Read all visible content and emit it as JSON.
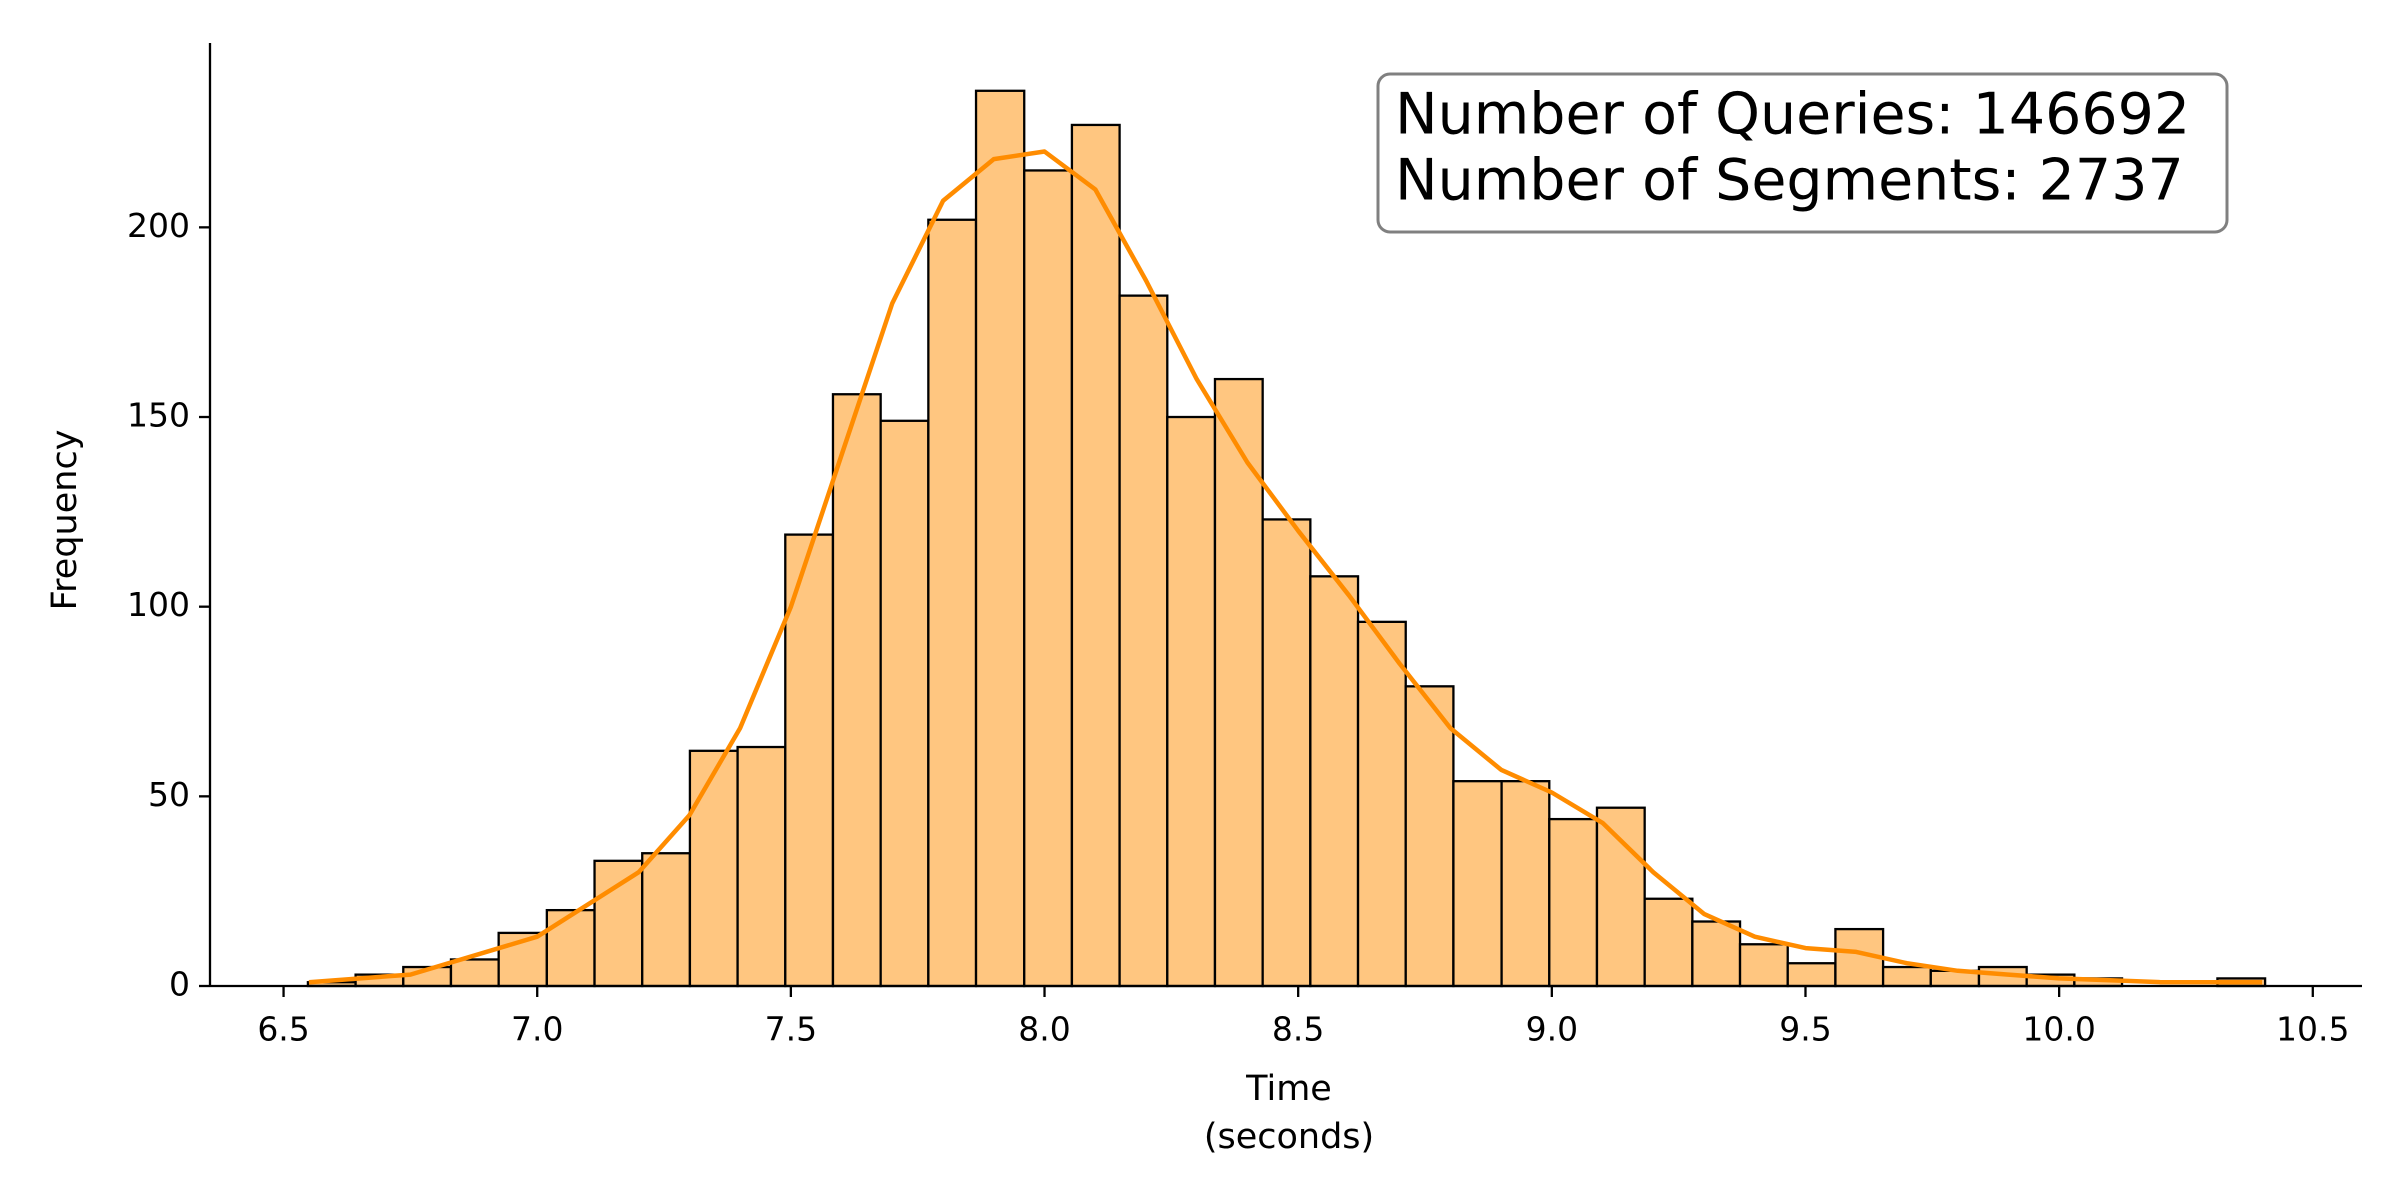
{
  "chart_data": {
    "type": "histogram",
    "xlabel": [
      "Time",
      "(seconds)"
    ],
    "ylabel": "Frequency",
    "annotation": [
      "Number of Queries: 146692",
      "Number of Segments: 2737"
    ],
    "bins": [
      6.548,
      6.642,
      6.736,
      6.83,
      6.924,
      7.019,
      7.113,
      7.207,
      7.301,
      7.395,
      7.489,
      7.583,
      7.677,
      7.771,
      7.865,
      7.96,
      8.054,
      8.148,
      8.242,
      8.336,
      8.43,
      8.524,
      8.618,
      8.712,
      8.806,
      8.901,
      8.995,
      9.089,
      9.183,
      9.277,
      9.371,
      9.465,
      9.559,
      9.653,
      9.747,
      9.842,
      9.936,
      10.03,
      10.124,
      10.218,
      10.312,
      10.406
    ],
    "values": [
      1,
      3,
      5,
      7,
      14,
      20,
      33,
      35,
      62,
      63,
      119,
      156,
      149,
      202,
      236,
      215,
      227,
      182,
      150,
      160,
      123,
      108,
      96,
      79,
      54,
      54,
      44,
      47,
      23,
      17,
      11,
      6,
      15,
      5,
      4,
      5,
      3,
      2,
      0,
      0,
      2
    ],
    "color": "#ffc680",
    "edgecolor": "#000000",
    "kde": {
      "x": [
        6.55,
        6.75,
        7.0,
        7.2,
        7.3,
        7.4,
        7.5,
        7.6,
        7.7,
        7.8,
        7.9,
        8.0,
        8.1,
        8.2,
        8.3,
        8.4,
        8.5,
        8.6,
        8.7,
        8.8,
        8.9,
        9.0,
        9.1,
        9.2,
        9.3,
        9.4,
        9.5,
        9.6,
        9.7,
        9.8,
        9.9,
        10.0,
        10.1,
        10.2,
        10.4
      ],
      "values": [
        1,
        3,
        13,
        30,
        45,
        68,
        100,
        140,
        180,
        207,
        218,
        220,
        210,
        186,
        160,
        138,
        120,
        103,
        85,
        68,
        57,
        51,
        43,
        30,
        19,
        13,
        10,
        9,
        6,
        4,
        3,
        2,
        1.5,
        1,
        1
      ],
      "color": "#ff8c00"
    },
    "xlim": [
      6.355,
      10.597
    ],
    "ylim": [
      0,
      248.6
    ],
    "xticks": [
      6.5,
      {
        "value": 7.0,
        "label": "7.0"
      },
      7.5,
      {
        "value": 8.0,
        "label": "8.0"
      },
      8.5,
      {
        "value": 9.0,
        "label": "9.0"
      },
      9.5,
      {
        "value": 10.0,
        "label": "10.0"
      },
      10.5
    ],
    "yticks": [
      0,
      50,
      100,
      150,
      200
    ]
  }
}
